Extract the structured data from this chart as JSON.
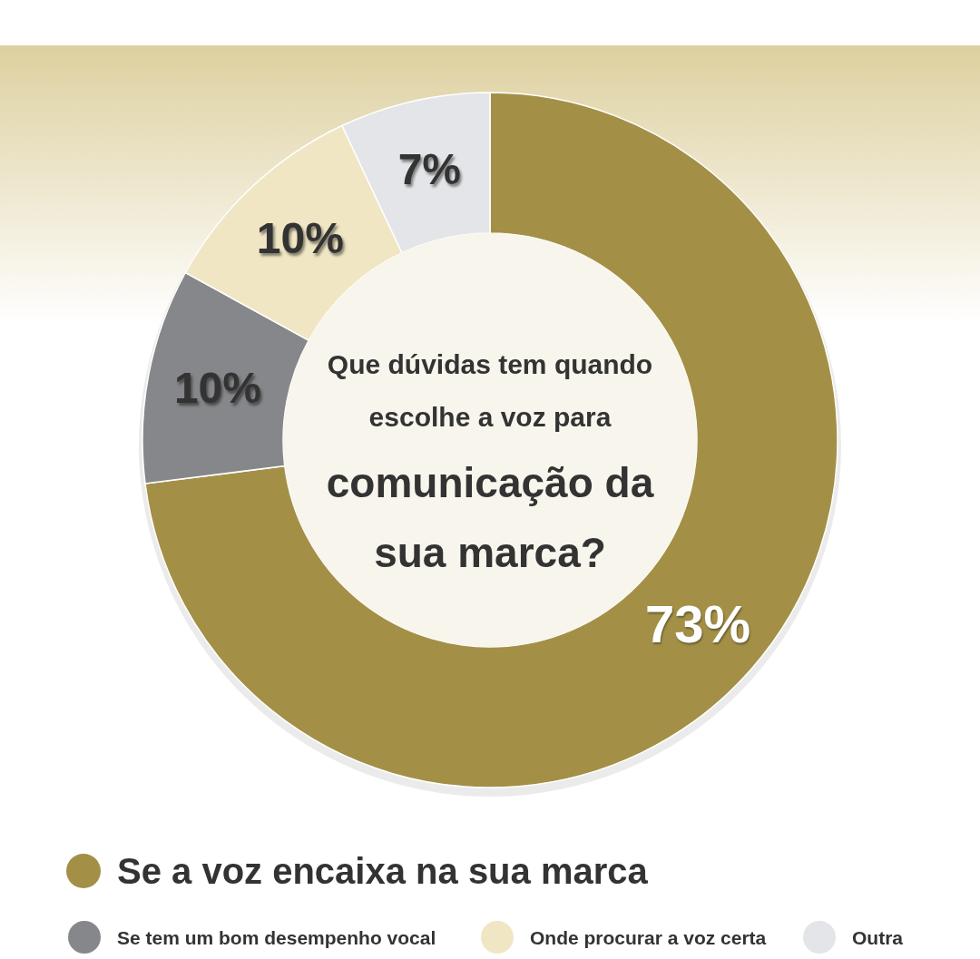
{
  "chart_data": {
    "type": "donut",
    "title": "Que dúvidas tem quando escolhe a voz para comunicação da sua marca?",
    "categories": [
      "Se a voz encaixa na sua marca",
      "Se tem um bom desempenho vocal",
      "Onde procurar a voz certa",
      "Outra"
    ],
    "values": [
      73,
      10,
      10,
      7
    ],
    "colors": [
      "#a39046",
      "#86878a",
      "#f0e6c4",
      "#e4e5e8"
    ],
    "value_labels": [
      "73%",
      "10%",
      "10%",
      "7%"
    ],
    "legend": "bottom"
  }
}
